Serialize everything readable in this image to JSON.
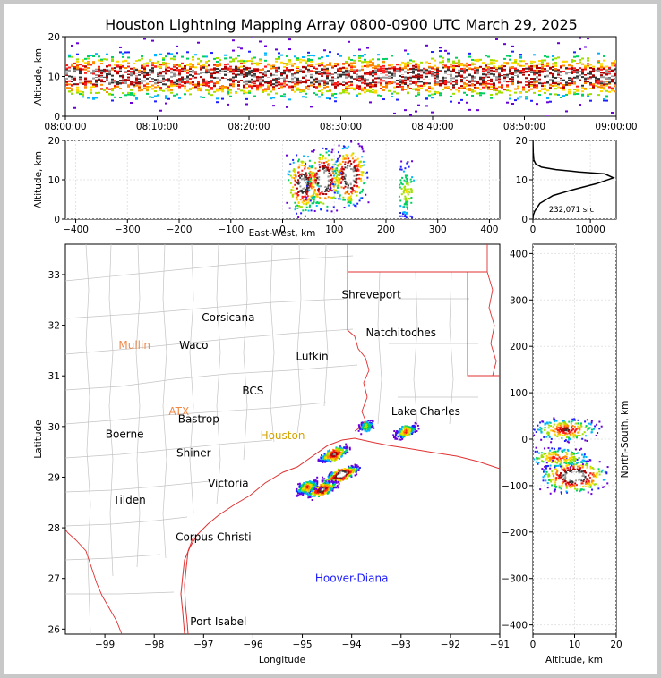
{
  "figure": {
    "title": "Houston Lightning Mapping Array 0800-0900 UTC March 29, 2025"
  },
  "time_panel": {
    "ylabel": "Altitude, km",
    "yticks": [
      "0",
      "10",
      "20"
    ],
    "xticks": [
      "08:00:00",
      "08:10:00",
      "08:20:00",
      "08:30:00",
      "08:40:00",
      "08:50:00",
      "09:00:00"
    ]
  },
  "ew_panel": {
    "ylabel": "Altitude, km",
    "xlabel": "East-West, km",
    "yticks": [
      "0",
      "10",
      "20"
    ],
    "xticks": [
      "−400",
      "−300",
      "−200",
      "−100",
      "0",
      "100",
      "200",
      "300",
      "400"
    ]
  },
  "hist_panel": {
    "yticks": [
      "0",
      "10",
      "20"
    ],
    "xticks": [
      "0",
      "10000"
    ],
    "annotation": "232,071 src"
  },
  "map_panel": {
    "ylabel": "Latitude",
    "xlabel": "Longitude",
    "yticks": [
      "26",
      "27",
      "28",
      "29",
      "30",
      "31",
      "32",
      "33"
    ],
    "xticks": [
      "−99",
      "−98",
      "−97",
      "−96",
      "−95",
      "−94",
      "−93",
      "−92",
      "−91"
    ]
  },
  "ns_panel": {
    "ylabel": "North-South, km",
    "xlabel": "Altitude, km",
    "yticks": [
      "400",
      "300",
      "200",
      "100",
      "0",
      "−100",
      "−200",
      "−300",
      "−400"
    ],
    "xticks": [
      "0",
      "10",
      "20"
    ]
  },
  "map_labels": [
    {
      "name": "Shreveport",
      "color": "#000000"
    },
    {
      "name": "Corsicana",
      "color": "#000000"
    },
    {
      "name": "Natchitoches",
      "color": "#000000"
    },
    {
      "name": "Mullin",
      "color": "#f08a4b"
    },
    {
      "name": "Waco",
      "color": "#000000"
    },
    {
      "name": "Lufkin",
      "color": "#000000"
    },
    {
      "name": "BCS",
      "color": "#000000"
    },
    {
      "name": "ATX",
      "color": "#f08a4b"
    },
    {
      "name": "Bastrop",
      "color": "#000000"
    },
    {
      "name": "Lake Charles",
      "color": "#000000"
    },
    {
      "name": "Boerne",
      "color": "#000000"
    },
    {
      "name": "Houston",
      "color": "#d4a300"
    },
    {
      "name": "Shiner",
      "color": "#000000"
    },
    {
      "name": "Victoria",
      "color": "#000000"
    },
    {
      "name": "Tilden",
      "color": "#000000"
    },
    {
      "name": "Corpus Christi",
      "color": "#000000"
    },
    {
      "name": "Hoover-Diana",
      "color": "#1a1aff"
    },
    {
      "name": "Port Isabel",
      "color": "#000000"
    }
  ],
  "chart_data": [
    {
      "type": "heatmap",
      "panel": "altitude vs time",
      "x_range": [
        "08:00:00",
        "09:00:00"
      ],
      "ylim": [
        0,
        20
      ],
      "ylabel": "Altitude, km",
      "peak_altitude_km": 10
    },
    {
      "type": "heatmap",
      "panel": "altitude vs east-west",
      "xlim": [
        -420,
        420
      ],
      "ylim": [
        0,
        20
      ],
      "xlabel": "East-West, km",
      "ylabel": "Altitude, km",
      "cells": [
        {
          "x_km": 40,
          "alt_km": 9,
          "level": 0.9
        },
        {
          "x_km": 80,
          "alt_km": 10,
          "level": 1.0
        },
        {
          "x_km": 130,
          "alt_km": 11,
          "level": 1.0
        },
        {
          "x_km": 240,
          "alt_km": 7,
          "level": 0.4
        }
      ]
    },
    {
      "type": "line",
      "panel": "altitude histogram",
      "annotation": "232,071 src",
      "xlim": [
        0,
        14500
      ],
      "ylim": [
        0,
        20
      ],
      "x": [
        0,
        50,
        300,
        1200,
        3500,
        7000,
        11000,
        14000,
        12500,
        8000,
        4000,
        1500,
        500,
        150,
        40,
        0
      ],
      "y": [
        0,
        1,
        2,
        4,
        6,
        7.5,
        9,
        10.5,
        11.5,
        12,
        12.6,
        13.2,
        14,
        15,
        17,
        20
      ]
    },
    {
      "type": "scatter",
      "panel": "plan view map",
      "xlabel": "Longitude",
      "ylabel": "Latitude",
      "xlim": [
        -99.8,
        -91
      ],
      "ylim": [
        25.9,
        33.6
      ],
      "clusters": [
        {
          "lon": -94.2,
          "lat": 29.05,
          "level": 1.0
        },
        {
          "lon": -94.35,
          "lat": 29.45,
          "level": 0.8
        },
        {
          "lon": -94.6,
          "lat": 28.75,
          "level": 0.85
        },
        {
          "lon": -94.9,
          "lat": 28.8,
          "level": 0.6
        },
        {
          "lon": -92.9,
          "lat": 29.9,
          "level": 0.6
        },
        {
          "lon": -93.7,
          "lat": 30.0,
          "level": 0.4
        }
      ]
    },
    {
      "type": "heatmap",
      "panel": "north-south vs altitude",
      "xlim": [
        0,
        20
      ],
      "ylim": [
        -420,
        420
      ],
      "xlabel": "Altitude, km",
      "ylabel": "North-South, km",
      "cells": [
        {
          "alt_km": 10,
          "y_km": -80,
          "level": 1.0
        },
        {
          "alt_km": 8,
          "y_km": 20,
          "level": 0.7
        },
        {
          "alt_km": 6,
          "y_km": -40,
          "level": 0.6
        }
      ]
    }
  ]
}
